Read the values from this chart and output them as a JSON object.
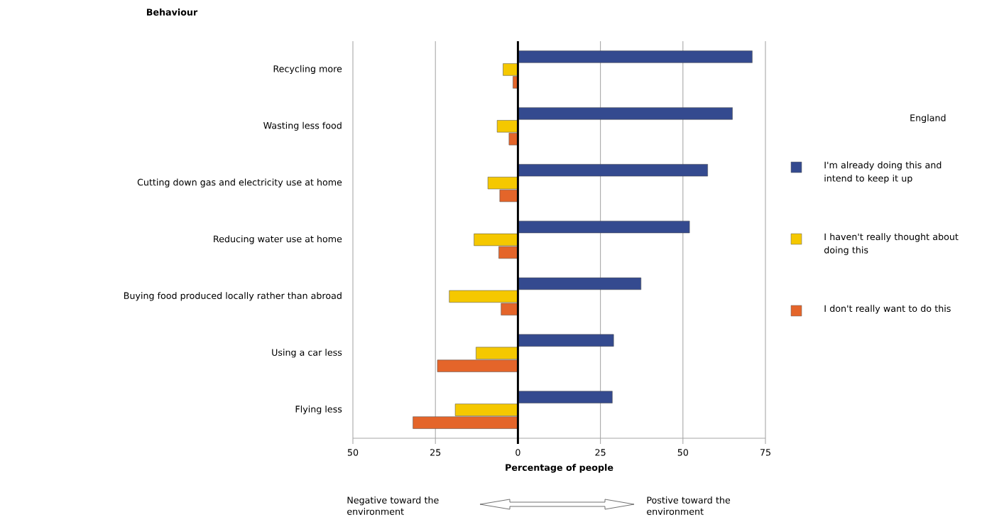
{
  "chart_data": {
    "type": "bar",
    "orientation": "horizontal",
    "ylabel": "Behaviour",
    "xlabel": "Percentage of people",
    "legend_title": "England",
    "categories": [
      "Recycling more",
      "Wasting less food",
      "Cutting down gas and electricity use at home",
      "Reducing water use at home",
      "Buying food produced locally rather than abroad",
      "Using a car less",
      "Flying less"
    ],
    "series": [
      {
        "name": "I'm already doing this and intend to keep it up",
        "color": "#344a8f",
        "values": [
          71,
          65,
          57.5,
          52,
          37.3,
          29,
          28.6
        ]
      },
      {
        "name": "I haven't really thought about doing this",
        "color": "#f5c800",
        "values": [
          -4.5,
          -6.3,
          -9.1,
          -13.3,
          -20.8,
          -12.7,
          -19
        ]
      },
      {
        "name": "I don't really want to do this",
        "color": "#e4652a",
        "values": [
          -1.5,
          -2.7,
          -5.5,
          -5.8,
          -5.1,
          -24.4,
          -31.8
        ]
      }
    ],
    "xlim": [
      -50,
      75
    ],
    "xticks": [
      {
        "value": -50,
        "label": "50"
      },
      {
        "value": -25,
        "label": "25"
      },
      0,
      25,
      50,
      75
    ],
    "grid": "x",
    "legend": "right",
    "ref_lines": [
      {
        "axis": "x",
        "value": 0,
        "color": "#000000"
      }
    ],
    "annotations": [
      "Negative toward the environment",
      "Postive toward the environment"
    ]
  }
}
